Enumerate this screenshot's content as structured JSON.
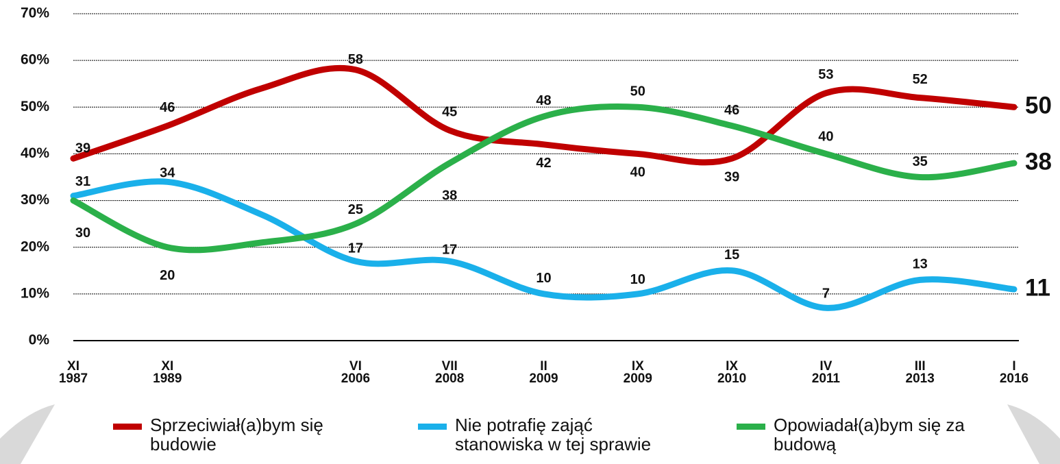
{
  "chart_data": {
    "type": "line",
    "categories": [
      "XI 1987",
      "XI 1989",
      null,
      "VI 2006",
      "VII 2008",
      "II 2009",
      "IX 2009",
      "IX 2010",
      "IV 2011",
      "III 2013",
      "I 2016"
    ],
    "series": [
      {
        "name": "Sprzeciwiał(a)bym się budowie",
        "color": "#c00000",
        "values": [
          39,
          46,
          54,
          58,
          45,
          42,
          40,
          39,
          53,
          52,
          50
        ]
      },
      {
        "name": "Nie potrafię zająć stanowiska w tej sprawie",
        "color": "#1ab0ea",
        "values": [
          31,
          34,
          27,
          17,
          17,
          10,
          10,
          15,
          7,
          13,
          11
        ]
      },
      {
        "name": "Opowiadał(a)bym się za budową",
        "color": "#2bb04a",
        "values": [
          30,
          20,
          21,
          25,
          38,
          48,
          50,
          46,
          40,
          35,
          38
        ]
      }
    ],
    "ylim": [
      0,
      70
    ],
    "yticks": [
      {
        "value": 0,
        "label": "0%"
      },
      {
        "value": 10,
        "label": "10%"
      },
      {
        "value": 20,
        "label": "20%"
      },
      {
        "value": 30,
        "label": "30%"
      },
      {
        "value": 40,
        "label": "40%"
      },
      {
        "value": 50,
        "label": "50%"
      },
      {
        "value": 60,
        "label": "60%"
      },
      {
        "value": 70,
        "label": "70%"
      }
    ],
    "grid": true
  }
}
